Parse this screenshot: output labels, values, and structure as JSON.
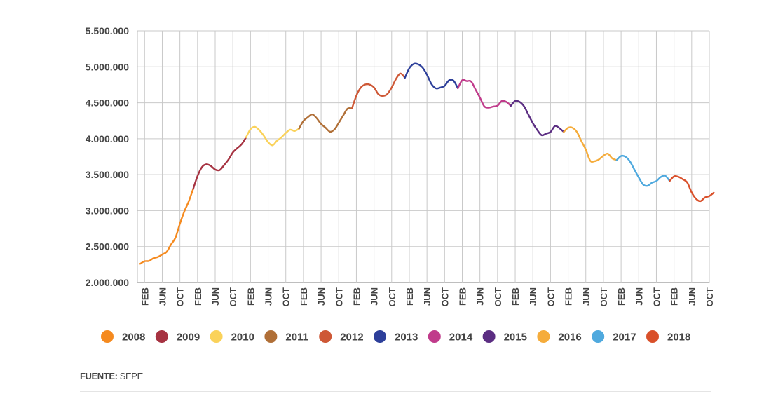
{
  "chart_data": {
    "type": "line",
    "title": "",
    "xlabel": "",
    "ylabel": "",
    "ylim": [
      2000000,
      5500000
    ],
    "yticks": [
      2000000,
      2500000,
      3000000,
      3500000,
      4000000,
      4500000,
      5000000,
      5500000
    ],
    "ytick_labels": [
      "2.000.000",
      "2.500.000",
      "3.000.000",
      "3.500.000",
      "4.000.000",
      "4.500.000",
      "5.000.000",
      "5.500.000"
    ],
    "grid": true,
    "x_ticks": [
      {
        "label": "FEB",
        "index": 1
      },
      {
        "label": "JUN",
        "index": 5
      },
      {
        "label": "OCT",
        "index": 9
      },
      {
        "label": "FEB",
        "index": 13
      },
      {
        "label": "JUN",
        "index": 17
      },
      {
        "label": "OCT",
        "index": 21
      },
      {
        "label": "FEB",
        "index": 25
      },
      {
        "label": "JUN",
        "index": 29
      },
      {
        "label": "OCT",
        "index": 33
      },
      {
        "label": "FEB",
        "index": 37
      },
      {
        "label": "JUN",
        "index": 41
      },
      {
        "label": "OCT",
        "index": 45
      },
      {
        "label": "FEB",
        "index": 49
      },
      {
        "label": "JUN",
        "index": 53
      },
      {
        "label": "OCT",
        "index": 57
      },
      {
        "label": "FEB",
        "index": 61
      },
      {
        "label": "JUN",
        "index": 65
      },
      {
        "label": "OCT",
        "index": 69
      },
      {
        "label": "FEB",
        "index": 73
      },
      {
        "label": "JUN",
        "index": 77
      },
      {
        "label": "OCT",
        "index": 81
      },
      {
        "label": "FEB",
        "index": 85
      },
      {
        "label": "JUN",
        "index": 89
      },
      {
        "label": "OCT",
        "index": 93
      },
      {
        "label": "FEB",
        "index": 97
      },
      {
        "label": "JUN",
        "index": 101
      },
      {
        "label": "OCT",
        "index": 105
      },
      {
        "label": "FEB",
        "index": 109
      },
      {
        "label": "JUN",
        "index": 113
      },
      {
        "label": "OCT",
        "index": 117
      },
      {
        "label": "FEB",
        "index": 121
      },
      {
        "label": "JUN",
        "index": 125
      },
      {
        "label": "OCT",
        "index": 129
      }
    ],
    "x_range": [
      0,
      129
    ],
    "series": [
      {
        "name": "2008",
        "color": "#F58A1F",
        "start_index": 0,
        "values": [
          2261000,
          2296000,
          2300000,
          2338000,
          2355000,
          2390000,
          2426000,
          2530000,
          2625000,
          2818000,
          2989000,
          3128000,
          3300000
        ]
      },
      {
        "name": "2009",
        "color": "#A63241",
        "start_index": 12,
        "values": [
          3300000,
          3482000,
          3605000,
          3644000,
          3622000,
          3571000,
          3563000,
          3632000,
          3709000,
          3810000,
          3869000,
          3924000,
          4020000
        ]
      },
      {
        "name": "2010",
        "color": "#FAD25A",
        "start_index": 24,
        "values": [
          4020000,
          4133000,
          4165000,
          4119000,
          4043000,
          3952000,
          3908000,
          3972000,
          4018000,
          4080000,
          4126000,
          4108000,
          4140000
        ]
      },
      {
        "name": "2011",
        "color": "#B06F37",
        "start_index": 36,
        "values": [
          4140000,
          4247000,
          4299000,
          4338000,
          4286000,
          4205000,
          4154000,
          4098000,
          4127000,
          4220000,
          4321000,
          4418000,
          4422000
        ]
      },
      {
        "name": "2012",
        "color": "#CE5836",
        "start_index": 48,
        "values": [
          4422000,
          4599000,
          4712000,
          4754000,
          4753000,
          4712000,
          4618000,
          4595000,
          4621000,
          4712000,
          4833000,
          4907000,
          4848000
        ]
      },
      {
        "name": "2013",
        "color": "#2D3F9A",
        "start_index": 60,
        "values": [
          4848000,
          4981000,
          5040000,
          5035000,
          4989000,
          4890000,
          4763000,
          4701000,
          4711000,
          4735000,
          4812000,
          4809000,
          4702000
        ]
      },
      {
        "name": "2014",
        "color": "#C03B8B",
        "start_index": 72,
        "values": [
          4702000,
          4814000,
          4802000,
          4797000,
          4685000,
          4572000,
          4450000,
          4432000,
          4447000,
          4460000,
          4526000,
          4512000,
          4458000
        ]
      },
      {
        "name": "2015",
        "color": "#5B2D82",
        "start_index": 84,
        "values": [
          4458000,
          4525000,
          4512000,
          4451000,
          4334000,
          4217000,
          4121000,
          4049000,
          4071000,
          4094000,
          4176000,
          4149000,
          4094000
        ]
      },
      {
        "name": "2016",
        "color": "#F5AC3B",
        "start_index": 96,
        "values": [
          4094000,
          4152000,
          4152000,
          4093000,
          3967000,
          3849000,
          3694000,
          3687000,
          3713000,
          3764000,
          3791000,
          3727000,
          3702000
        ]
      },
      {
        "name": "2017",
        "color": "#4FA9DE",
        "start_index": 108,
        "values": [
          3702000,
          3760000,
          3749000,
          3685000,
          3573000,
          3461000,
          3362000,
          3345000,
          3388000,
          3411000,
          3467000,
          3485000,
          3412000
        ]
      },
      {
        "name": "2018",
        "color": "#D9502A",
        "start_index": 120,
        "values": [
          3412000,
          3476000,
          3470000,
          3436000,
          3390000,
          3252000,
          3163000,
          3132000,
          3183000,
          3202000,
          3249000
        ]
      }
    ],
    "legend": {
      "placement": "bottom",
      "entries": [
        {
          "label": "2008",
          "color": "#F58A1F"
        },
        {
          "label": "2009",
          "color": "#A63241"
        },
        {
          "label": "2010",
          "color": "#FAD25A"
        },
        {
          "label": "2011",
          "color": "#B06F37"
        },
        {
          "label": "2012",
          "color": "#CE5836"
        },
        {
          "label": "2013",
          "color": "#2D3F9A"
        },
        {
          "label": "2014",
          "color": "#C03B8B"
        },
        {
          "label": "2015",
          "color": "#5B2D82"
        },
        {
          "label": "2016",
          "color": "#F5AC3B"
        },
        {
          "label": "2017",
          "color": "#4FA9DE"
        },
        {
          "label": "2018",
          "color": "#D9502A"
        }
      ]
    }
  },
  "source": {
    "label": "FUENTE:",
    "value": "SEPE"
  }
}
